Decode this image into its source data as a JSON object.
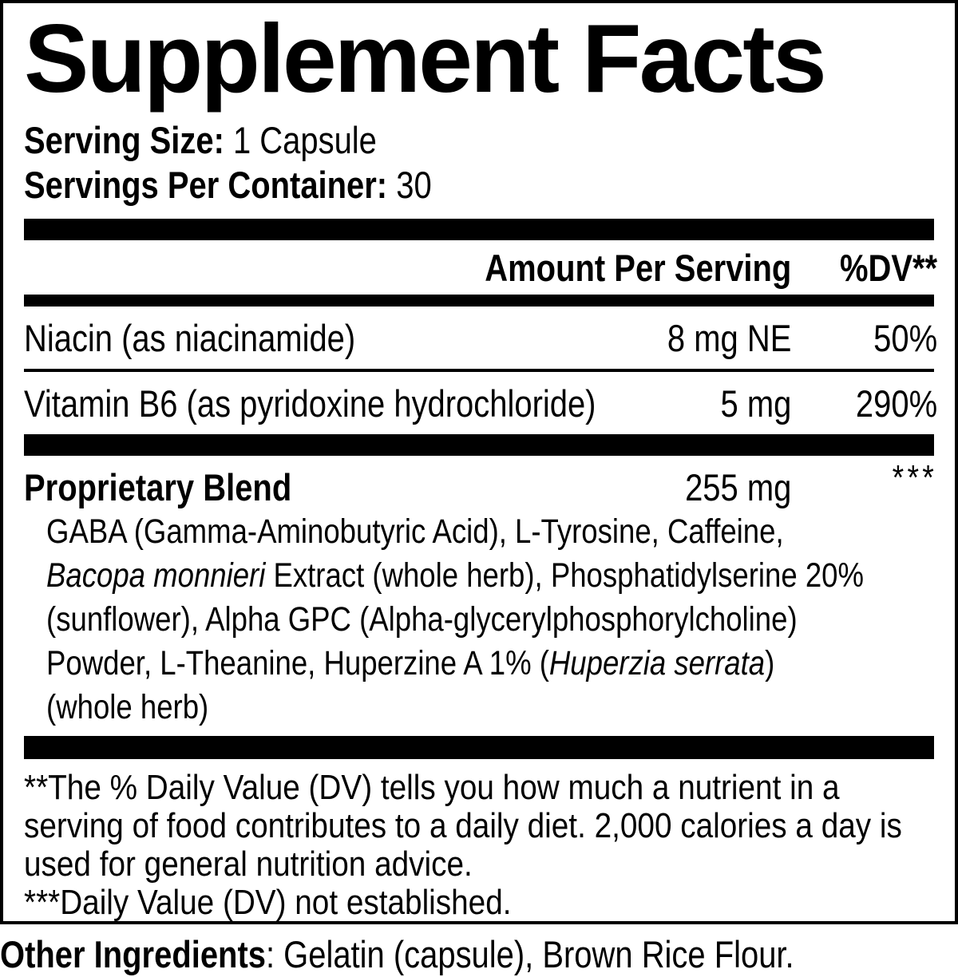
{
  "title": "Supplement Facts",
  "serving_info": {
    "serving_size": {
      "label": "Serving Size:",
      "value": "1 Capsule"
    },
    "servings_per_container": {
      "label": "Servings Per Container:",
      "value": "30"
    }
  },
  "table": {
    "header": {
      "amount": "Amount Per Serving",
      "dv": "%DV**"
    },
    "rows": [
      {
        "name": "Niacin (as niacinamide)",
        "amount": "8 mg NE",
        "dv": "50%"
      },
      {
        "name": "Vitamin B6 (as pyridoxine hydrochloride)",
        "amount": "5 mg",
        "dv": "290%"
      }
    ],
    "proprietary_blend": {
      "name": "Proprietary Blend",
      "amount": "255 mg",
      "dv": "***",
      "description_lines": [
        [
          {
            "text": "GABA (Gamma-Aminobutyric Acid), L-Tyrosine, Caffeine,",
            "italic": false
          }
        ],
        [
          {
            "text": "Bacopa monnieri",
            "italic": true
          },
          {
            "text": " Extract (whole herb), Phosphatidylserine 20%",
            "italic": false
          }
        ],
        [
          {
            "text": "(sunflower), Alpha GPC (Alpha-glycerylphosphorylcholine)",
            "italic": false
          }
        ],
        [
          {
            "text": "Powder, L-Theanine, Huperzine A 1% (",
            "italic": false
          },
          {
            "text": "Huperzia serrata",
            "italic": true
          },
          {
            "text": ")",
            "italic": false
          }
        ],
        [
          {
            "text": "(whole herb)",
            "italic": false
          }
        ]
      ]
    }
  },
  "footnotes": [
    "**The % Daily Value (DV) tells you how much a nutrient in a serving of food contributes to a daily diet. 2,000 calories a day is used for general nutrition advice.",
    "***Daily Value (DV) not established."
  ],
  "other_ingredients": {
    "label": "Other Ingredients",
    "value": ": Gelatin (capsule), Brown Rice Flour."
  },
  "colors": {
    "text": "#000000",
    "background": "#ffffff",
    "bar": "#000000"
  }
}
